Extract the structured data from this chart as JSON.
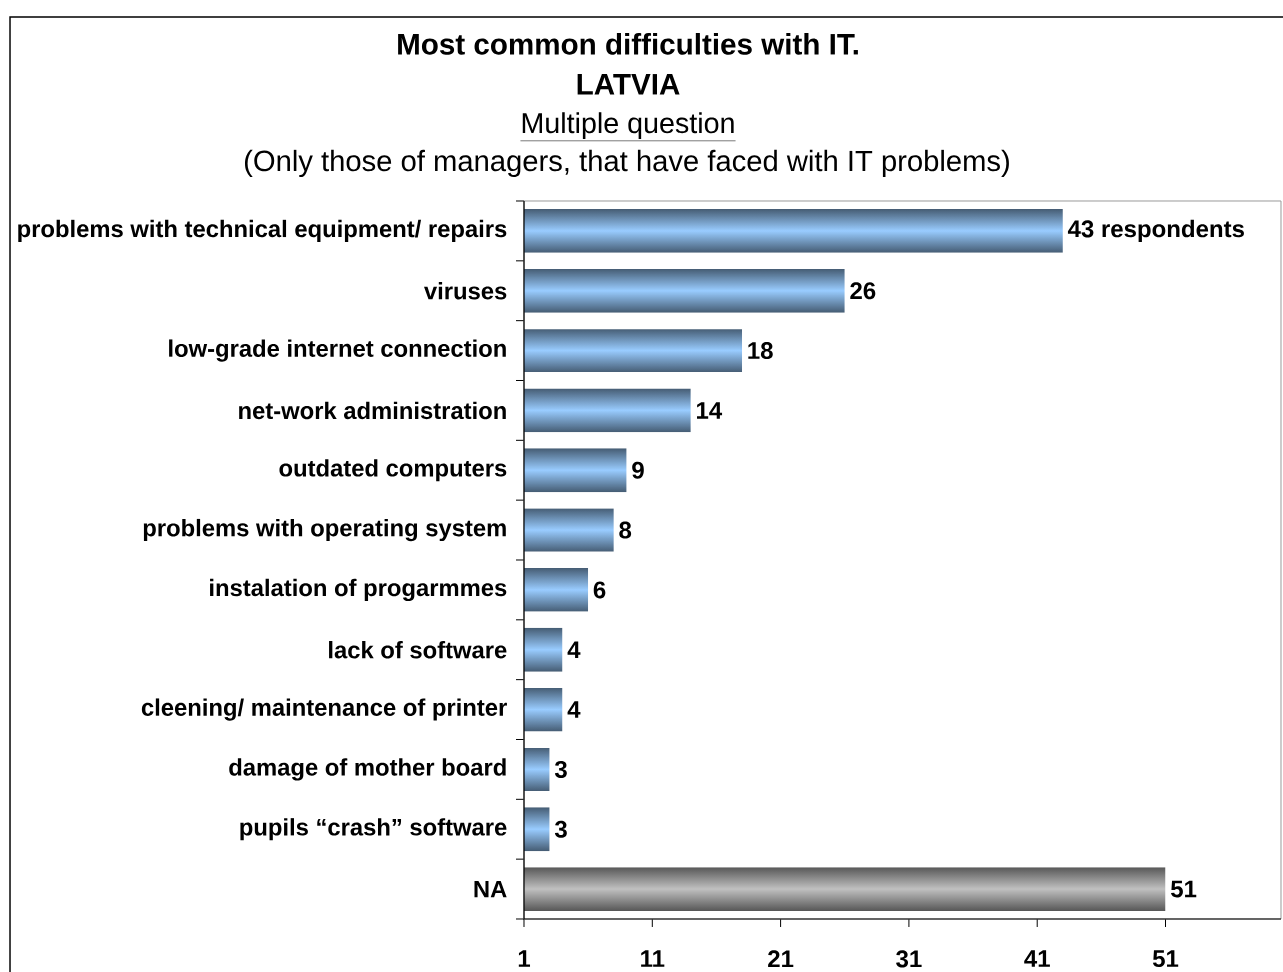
{
  "chart_data": {
    "type": "bar",
    "orientation": "horizontal",
    "title": "Most common difficulties with IT. LATVIA",
    "subtitle": "Multiple question",
    "annotations": [
      "(Only those of managers, that have faced with IT problems)"
    ],
    "categories": [
      "problems with technical equipment/ repairs",
      "viruses",
      "low-grade internet connection",
      "net-work administration",
      "outdated computers",
      "problems with operating system",
      "instalation of progarmmes",
      "lack of software",
      "cleening/ maintenance of printer",
      "damage of mother board",
      "pupils “crash” software",
      "NA"
    ],
    "values": [
      43,
      26,
      18,
      14,
      9,
      8,
      6,
      4,
      4,
      3,
      3,
      51
    ],
    "colors": [
      "#99ccff",
      "#99ccff",
      "#99ccff",
      "#99ccff",
      "#99ccff",
      "#99ccff",
      "#99ccff",
      "#99ccff",
      "#99ccff",
      "#99ccff",
      "#99ccff",
      "#c0c0c0"
    ],
    "value_labels": [
      "43 respondents",
      "26",
      "18",
      "14",
      "9",
      "8",
      "6",
      "4",
      "4",
      "3",
      "3",
      "51"
    ],
    "xlim": [
      1,
      60
    ],
    "xticks": [
      1,
      11,
      21,
      31,
      41,
      51
    ]
  }
}
